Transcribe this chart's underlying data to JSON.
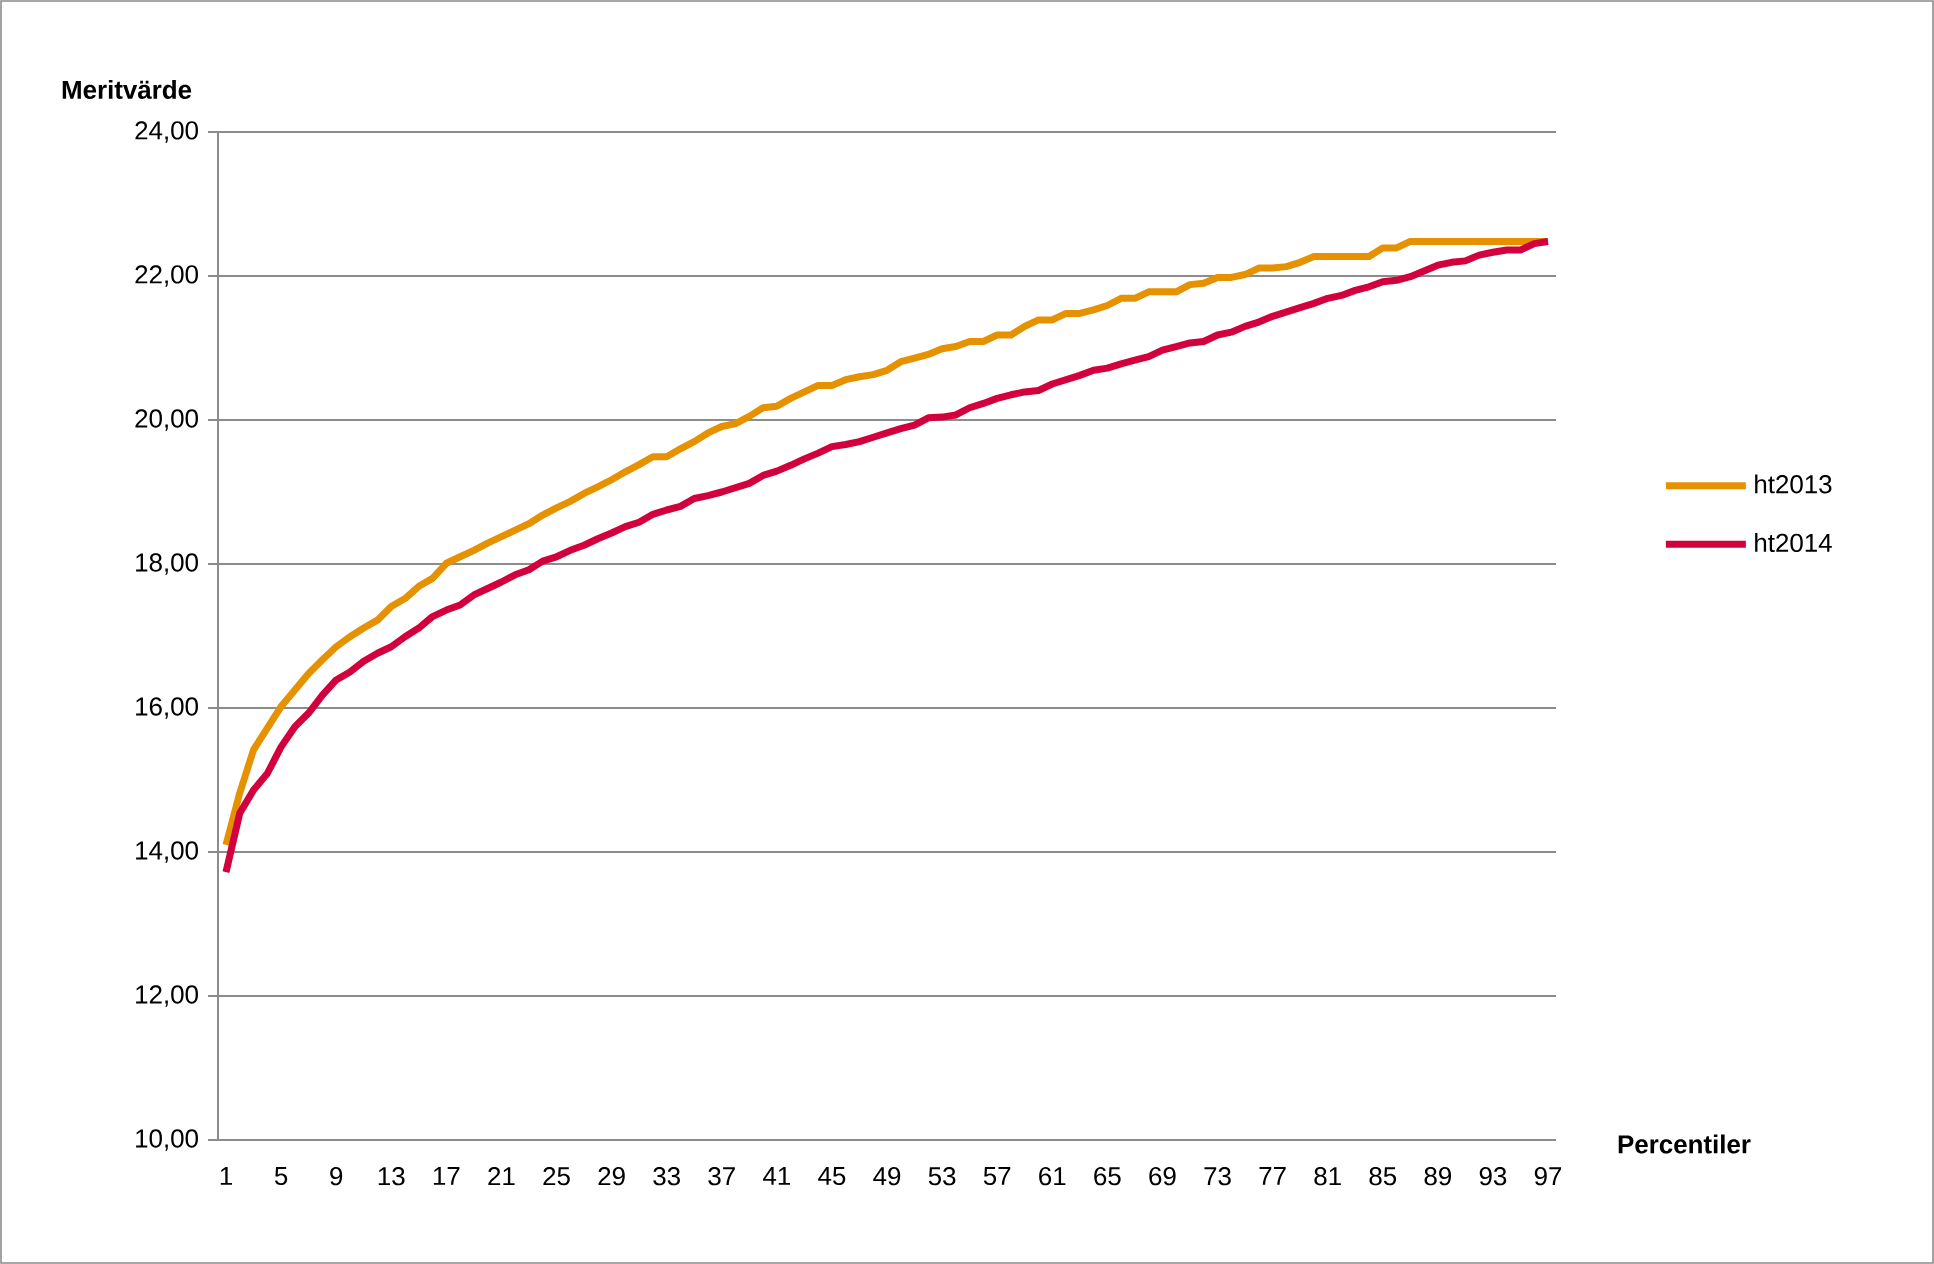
{
  "chart_data": {
    "type": "line",
    "xlabel": "Percentiler",
    "ylabel": "Meritvärde",
    "categories": [
      "1",
      null,
      null,
      null,
      "5",
      null,
      null,
      null,
      "9",
      null,
      null,
      null,
      "13",
      null,
      null,
      null,
      "17",
      null,
      null,
      null,
      "21",
      null,
      null,
      null,
      "25",
      null,
      null,
      null,
      "29",
      null,
      null,
      null,
      "33",
      null,
      null,
      null,
      "37",
      null,
      null,
      null,
      "41",
      null,
      null,
      null,
      "45",
      null,
      null,
      null,
      "49",
      null,
      null,
      null,
      "53",
      null,
      null,
      null,
      "57",
      null,
      null,
      null,
      "61",
      null,
      null,
      null,
      "65",
      null,
      null,
      null,
      "69",
      null,
      null,
      null,
      "73",
      null,
      null,
      null,
      "77",
      null,
      null,
      null,
      "81",
      null,
      null,
      null,
      "85",
      null,
      null,
      null,
      "89",
      null,
      null,
      null,
      "93",
      null,
      null,
      null,
      "97"
    ],
    "series": [
      {
        "name": "ht2013",
        "color": "#e69100",
        "values": [
          14.1,
          14.82,
          15.42,
          15.72,
          16.02,
          16.25,
          16.48,
          16.67,
          16.85,
          16.99,
          17.11,
          17.22,
          17.41,
          17.52,
          17.69,
          17.8,
          18.01,
          18.1,
          18.19,
          18.29,
          18.38,
          18.47,
          18.56,
          18.68,
          18.78,
          18.87,
          18.98,
          19.07,
          19.17,
          19.28,
          19.38,
          19.49,
          19.49,
          19.6,
          19.7,
          19.82,
          19.91,
          19.95,
          20.05,
          20.17,
          20.19,
          20.3,
          20.39,
          20.48,
          20.48,
          20.56,
          20.6,
          20.63,
          20.69,
          20.81,
          20.86,
          20.91,
          20.99,
          21.02,
          21.09,
          21.09,
          21.18,
          21.18,
          21.3,
          21.39,
          21.39,
          21.48,
          21.48,
          21.53,
          21.59,
          21.69,
          21.69,
          21.78,
          21.78,
          21.78,
          21.88,
          21.9,
          21.98,
          21.98,
          22.02,
          22.11,
          22.11,
          22.13,
          22.19,
          22.27,
          22.27,
          22.27,
          22.27,
          22.27,
          22.39,
          22.39,
          22.48,
          22.48,
          22.48,
          22.48,
          22.48,
          22.48,
          22.48,
          22.48,
          22.48,
          22.48,
          22.48
        ]
      },
      {
        "name": "ht2014",
        "color": "#d2003c",
        "values": [
          13.72,
          14.54,
          14.86,
          15.09,
          15.46,
          15.74,
          15.93,
          16.18,
          16.39,
          16.5,
          16.65,
          16.76,
          16.85,
          16.99,
          17.11,
          17.27,
          17.36,
          17.43,
          17.57,
          17.66,
          17.75,
          17.85,
          17.92,
          18.04,
          18.1,
          18.19,
          18.26,
          18.35,
          18.43,
          18.52,
          18.58,
          18.69,
          18.75,
          18.8,
          18.91,
          18.95,
          19.0,
          19.06,
          19.12,
          19.23,
          19.29,
          19.37,
          19.46,
          19.54,
          19.63,
          19.66,
          19.7,
          19.76,
          19.82,
          19.88,
          19.93,
          20.03,
          20.04,
          20.07,
          20.17,
          20.23,
          20.3,
          20.35,
          20.39,
          20.41,
          20.5,
          20.56,
          20.62,
          20.69,
          20.72,
          20.78,
          20.83,
          20.88,
          20.97,
          21.02,
          21.07,
          21.09,
          21.18,
          21.22,
          21.3,
          21.36,
          21.44,
          21.5,
          21.56,
          21.62,
          21.69,
          21.73,
          21.8,
          21.85,
          21.92,
          21.94,
          21.99,
          22.07,
          22.15,
          22.19,
          22.21,
          22.29,
          22.33,
          22.36,
          22.36,
          22.45,
          22.48
        ]
      }
    ],
    "ylim": [
      10,
      24
    ],
    "yticks": [
      {
        "value": 10,
        "label": "10,00"
      },
      {
        "value": 12,
        "label": "12,00"
      },
      {
        "value": 14,
        "label": "14,00"
      },
      {
        "value": 16,
        "label": "16,00"
      },
      {
        "value": 18,
        "label": "18,00"
      },
      {
        "value": 20,
        "label": "20,00"
      },
      {
        "value": 22,
        "label": "22,00"
      },
      {
        "value": 24,
        "label": "24,00"
      }
    ],
    "grid": "y",
    "legend": "right",
    "marker": "none",
    "line_style": "solid"
  }
}
